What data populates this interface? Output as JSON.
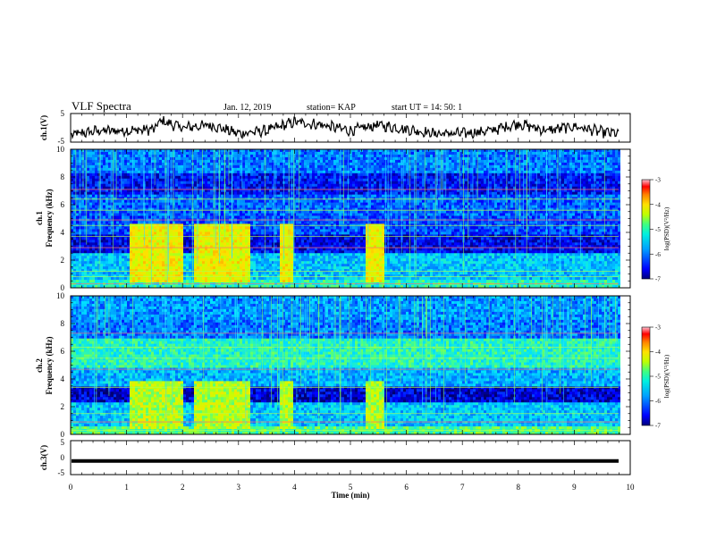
{
  "header": {
    "title": "VLF Spectra",
    "date": "Jan. 12, 2019",
    "station": "station= KAP",
    "start": "start  UT =   14: 50: 1"
  },
  "colors": {
    "axes": "#000000",
    "background": "#ffffff",
    "colormap": [
      "#00007a",
      "#0000ff",
      "#0080ff",
      "#00e0ff",
      "#40ff90",
      "#c8ff00",
      "#ffe000",
      "#ff8000",
      "#ff0000",
      "#ff80b0"
    ]
  },
  "chart_data": [
    {
      "type": "line",
      "ylabel": "ch.1(V)",
      "ylim": [
        -5,
        5
      ],
      "yticks": [
        "5",
        "-5"
      ],
      "xlim": [
        0,
        10
      ],
      "series": [
        {
          "color": "#000000",
          "x": [
            0,
            0.5,
            1,
            1.5,
            1.6,
            2,
            2.5,
            3,
            3.5,
            4,
            4.5,
            5,
            5.5,
            6,
            6.5,
            7,
            7.5,
            8,
            8.5,
            9,
            9.5,
            9.8
          ],
          "values": [
            -2.5,
            -1,
            -1,
            -0.5,
            2.5,
            0,
            1,
            -2,
            -1,
            2,
            1,
            -1,
            1,
            -0.5,
            -2,
            -2,
            -1,
            1.5,
            -1,
            0.5,
            -1.5,
            -2
          ]
        }
      ]
    },
    {
      "type": "heatmap",
      "ylabel": "ch.1\nFrequency  (kHz)",
      "ylim": [
        0,
        10
      ],
      "yticks": [
        "10",
        "8",
        "6",
        "4",
        "2",
        "0"
      ],
      "xlim": [
        0,
        10
      ],
      "colorbar": {
        "label": "log(PSD)(V²/Hz)",
        "min": -7,
        "max": -3,
        "ticks": [
          "-3",
          "-4",
          "-5",
          "-6",
          "-7"
        ]
      },
      "bursts": [
        {
          "x": [
            1.05,
            2.0
          ]
        },
        {
          "x": [
            2.2,
            3.2
          ]
        },
        {
          "x": [
            3.72,
            3.95
          ]
        },
        {
          "x": [
            5.25,
            5.6
          ]
        }
      ]
    },
    {
      "type": "heatmap",
      "ylabel": "ch.2\nFrequency  (kHz)",
      "ylim": [
        0,
        10
      ],
      "yticks": [
        "10",
        "8",
        "6",
        "4",
        "2",
        "0"
      ],
      "xlim": [
        0,
        10
      ],
      "colorbar": {
        "label": "log(PSD)(V²/Hz)",
        "min": -7,
        "max": -3,
        "ticks": [
          "-3",
          "-4",
          "-5",
          "-6",
          "-7"
        ]
      },
      "bursts": [
        {
          "x": [
            1.05,
            2.0
          ]
        },
        {
          "x": [
            2.2,
            3.2
          ]
        },
        {
          "x": [
            3.72,
            3.95
          ]
        },
        {
          "x": [
            5.25,
            5.6
          ]
        }
      ]
    },
    {
      "type": "line",
      "ylabel": "ch.3(V)",
      "xlabel": "Time  (min)",
      "ylim": [
        -5,
        5
      ],
      "yticks": [
        "5",
        "0",
        "-5"
      ],
      "xlim": [
        0,
        10
      ],
      "xticks": [
        "0",
        "1",
        "2",
        "3",
        "4",
        "5",
        "6",
        "7",
        "8",
        "9",
        "10"
      ],
      "series": [
        {
          "color": "#000000",
          "x": [
            0,
            9.8
          ],
          "values": [
            -1,
            -1
          ]
        }
      ]
    }
  ]
}
